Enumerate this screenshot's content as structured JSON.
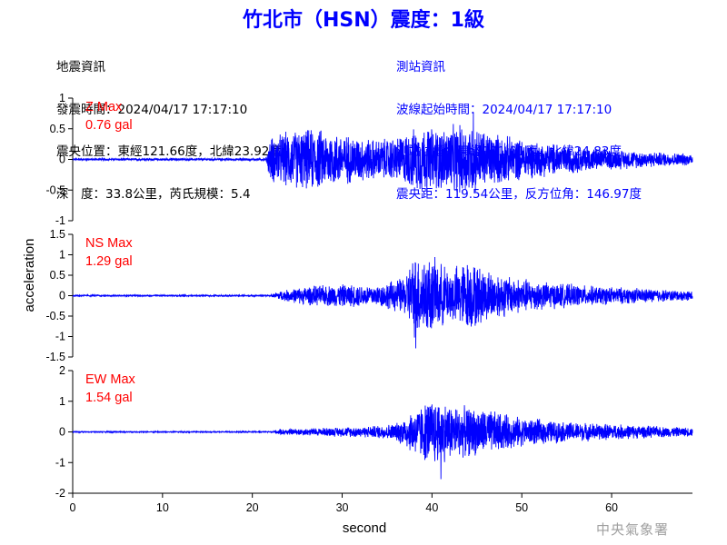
{
  "title": "竹北市（HSN）震度：1級",
  "quake_info": {
    "heading": "地震資訊",
    "origin_time": "發震時間：2024/04/17 17:17:10",
    "epicenter": "震央位置：東經121.66度，北緯23.92度",
    "depth_magnitude": "深　度：33.8公里，芮氏規模：5.4"
  },
  "station_info": {
    "heading": "測站資訊",
    "wave_start": "波線起始時間：2024/04/17 17:17:10",
    "station_location": "測站位置：東經121.01度，北緯24.83度",
    "distance_azimuth": "震央距：119.54公里，反方位角：146.97度"
  },
  "watermark": "中央氣象署",
  "colors": {
    "title": "#0000ff",
    "trace": "#0000ff",
    "max_label": "#ff0000",
    "station_text": "#0000ff"
  },
  "chart_data": {
    "type": "line",
    "xlabel": "second",
    "ylabel": "acceleration",
    "xlim": [
      0,
      69
    ],
    "xticks": [
      0,
      10,
      20,
      30,
      40,
      50,
      60
    ],
    "grid": false,
    "panels": [
      {
        "name": "Z",
        "max_title": "Z Max",
        "max_value": "0.76 gal",
        "ylim": [
          -1,
          1
        ],
        "yticks": [
          -1,
          -0.5,
          0,
          0.5,
          1
        ],
        "ytick_labels": [
          "-1",
          "-0.5",
          "0",
          "0.5",
          "1"
        ],
        "envelope": [
          [
            0,
            0.02
          ],
          [
            21.5,
            0.02
          ],
          [
            22,
            0.4
          ],
          [
            24,
            0.5
          ],
          [
            27,
            0.55
          ],
          [
            30,
            0.45
          ],
          [
            34,
            0.35
          ],
          [
            36,
            0.4
          ],
          [
            39,
            0.6
          ],
          [
            41,
            0.55
          ],
          [
            44,
            0.65
          ],
          [
            46,
            0.5
          ],
          [
            50,
            0.35
          ],
          [
            55,
            0.25
          ],
          [
            60,
            0.18
          ],
          [
            65,
            0.13
          ],
          [
            69,
            0.1
          ]
        ],
        "peak": [
          44.6,
          0.76
        ]
      },
      {
        "name": "NS",
        "max_title": "NS Max",
        "max_value": "1.29 gal",
        "ylim": [
          -1.5,
          1.5
        ],
        "yticks": [
          -1.5,
          -1,
          -0.5,
          0,
          0.5,
          1,
          1.5
        ],
        "ytick_labels": [
          "-1.5",
          "-1",
          "-0.5",
          "0",
          "0.5",
          "1",
          "1.5"
        ],
        "envelope": [
          [
            0,
            0.02
          ],
          [
            22,
            0.02
          ],
          [
            23,
            0.12
          ],
          [
            26,
            0.25
          ],
          [
            30,
            0.3
          ],
          [
            34,
            0.28
          ],
          [
            37,
            0.5
          ],
          [
            38,
            1.1
          ],
          [
            40,
            1.0
          ],
          [
            42,
            0.7
          ],
          [
            44,
            0.95
          ],
          [
            46,
            0.7
          ],
          [
            49,
            0.5
          ],
          [
            53,
            0.35
          ],
          [
            58,
            0.25
          ],
          [
            63,
            0.2
          ],
          [
            69,
            0.12
          ]
        ],
        "peak": [
          38.2,
          -1.29
        ]
      },
      {
        "name": "EW",
        "max_title": "EW Max",
        "max_value": "1.54 gal",
        "ylim": [
          -2,
          2
        ],
        "yticks": [
          -2,
          -1,
          0,
          1,
          2
        ],
        "ytick_labels": [
          "-2",
          "-1",
          "0",
          "1",
          "2"
        ],
        "envelope": [
          [
            0,
            0.02
          ],
          [
            22,
            0.02
          ],
          [
            23,
            0.1
          ],
          [
            28,
            0.15
          ],
          [
            33,
            0.2
          ],
          [
            36,
            0.3
          ],
          [
            38,
            0.8
          ],
          [
            40,
            1.2
          ],
          [
            41,
            1.1
          ],
          [
            43,
            0.9
          ],
          [
            46,
            0.8
          ],
          [
            50,
            0.5
          ],
          [
            55,
            0.35
          ],
          [
            60,
            0.28
          ],
          [
            65,
            0.2
          ],
          [
            69,
            0.15
          ]
        ],
        "peak": [
          41,
          -1.54
        ]
      }
    ]
  }
}
